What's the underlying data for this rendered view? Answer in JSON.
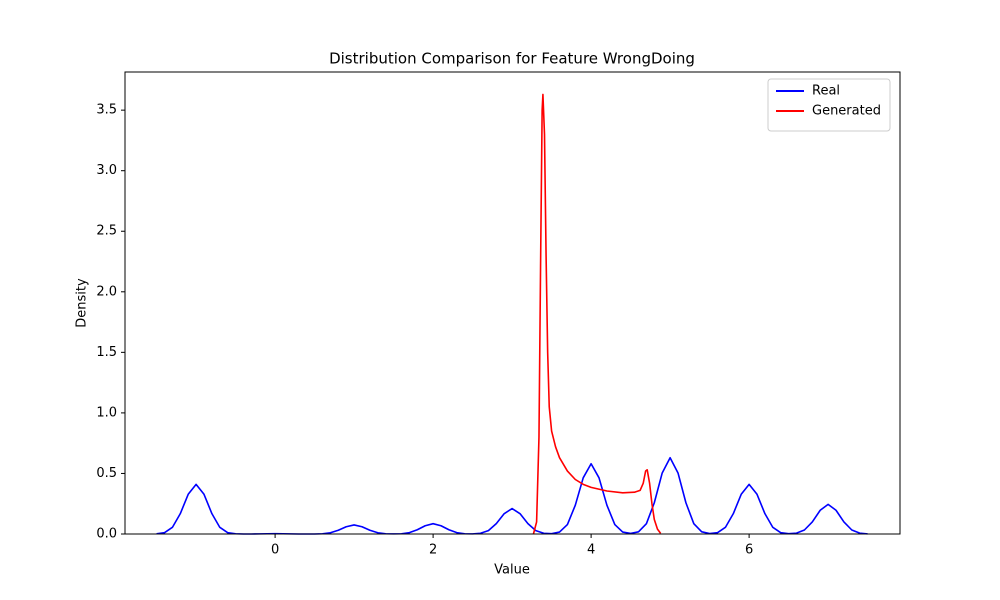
{
  "chart_data": {
    "type": "line",
    "title": "Distribution Comparison for Feature WrongDoing",
    "x_label": "Value",
    "y_label": "Density",
    "xlim": [
      -1.9,
      7.91
    ],
    "ylim": [
      0,
      3.815
    ],
    "xticks": [
      0,
      2,
      4,
      6
    ],
    "yticks": [
      {
        "value": 0,
        "label": "0.0"
      },
      0.5,
      {
        "value": 1,
        "label": "1.0"
      },
      1.5,
      {
        "value": 2,
        "label": "2.0"
      },
      2.5,
      {
        "value": 3,
        "label": "3.0"
      },
      3.5
    ],
    "grid": false,
    "legend": "upper right",
    "series": [
      {
        "name": "Real",
        "color": "#0000ff",
        "x": [
          -1.5,
          -1.4,
          -1.3,
          -1.2,
          -1.1,
          -1.0,
          -0.9,
          -0.8,
          -0.7,
          -0.6,
          -0.5,
          -0.4,
          -0.3,
          -0.2,
          -0.1,
          0.0,
          0.1,
          0.2,
          0.3,
          0.4,
          0.5,
          0.6,
          0.7,
          0.8,
          0.9,
          1.0,
          1.1,
          1.2,
          1.3,
          1.4,
          1.5,
          1.6,
          1.7,
          1.8,
          1.9,
          2.0,
          2.1,
          2.2,
          2.3,
          2.4,
          2.5,
          2.6,
          2.7,
          2.8,
          2.9,
          3.0,
          3.1,
          3.2,
          3.3,
          3.4,
          3.5,
          3.6,
          3.7,
          3.8,
          3.9,
          4.0,
          4.1,
          4.2,
          4.3,
          4.4,
          4.5,
          4.6,
          4.7,
          4.8,
          4.9,
          5.0,
          5.1,
          5.2,
          5.3,
          5.4,
          5.5,
          5.6,
          5.7,
          5.8,
          5.9,
          6.0,
          6.1,
          6.2,
          6.3,
          6.4,
          6.5,
          6.6,
          6.7,
          6.8,
          6.9,
          7.0,
          7.1,
          7.2,
          7.3,
          7.4,
          7.5
        ],
        "values": [
          0.002,
          0.011,
          0.055,
          0.168,
          0.328,
          0.41,
          0.328,
          0.168,
          0.055,
          0.011,
          0.002,
          0.0,
          0.0,
          0.001,
          0.002,
          0.003,
          0.002,
          0.001,
          0.0,
          0.0,
          0.0,
          0.002,
          0.01,
          0.031,
          0.06,
          0.075,
          0.06,
          0.031,
          0.01,
          0.002,
          0.001,
          0.002,
          0.011,
          0.035,
          0.068,
          0.085,
          0.068,
          0.035,
          0.011,
          0.002,
          0.001,
          0.006,
          0.028,
          0.086,
          0.168,
          0.21,
          0.168,
          0.086,
          0.028,
          0.006,
          0.003,
          0.016,
          0.078,
          0.238,
          0.464,
          0.58,
          0.464,
          0.238,
          0.078,
          0.016,
          0.005,
          0.018,
          0.085,
          0.258,
          0.504,
          0.63,
          0.504,
          0.258,
          0.085,
          0.018,
          0.004,
          0.011,
          0.055,
          0.168,
          0.328,
          0.41,
          0.328,
          0.168,
          0.055,
          0.011,
          0.003,
          0.007,
          0.033,
          0.1,
          0.196,
          0.245,
          0.196,
          0.1,
          0.033,
          0.007,
          0.001
        ]
      },
      {
        "name": "Generated",
        "color": "#ff0000",
        "x": [
          3.27,
          3.31,
          3.34,
          3.36,
          3.38,
          3.39,
          3.41,
          3.43,
          3.45,
          3.47,
          3.5,
          3.55,
          3.6,
          3.7,
          3.8,
          3.9,
          4.0,
          4.2,
          4.4,
          4.55,
          4.62,
          4.66,
          4.69,
          4.71,
          4.74,
          4.77,
          4.8,
          4.84,
          4.88
        ],
        "values": [
          0.0,
          0.1,
          0.8,
          2.2,
          3.5,
          3.63,
          3.3,
          2.3,
          1.5,
          1.05,
          0.85,
          0.72,
          0.63,
          0.52,
          0.45,
          0.41,
          0.385,
          0.355,
          0.34,
          0.345,
          0.36,
          0.42,
          0.52,
          0.53,
          0.42,
          0.25,
          0.12,
          0.04,
          0.005
        ]
      }
    ]
  }
}
